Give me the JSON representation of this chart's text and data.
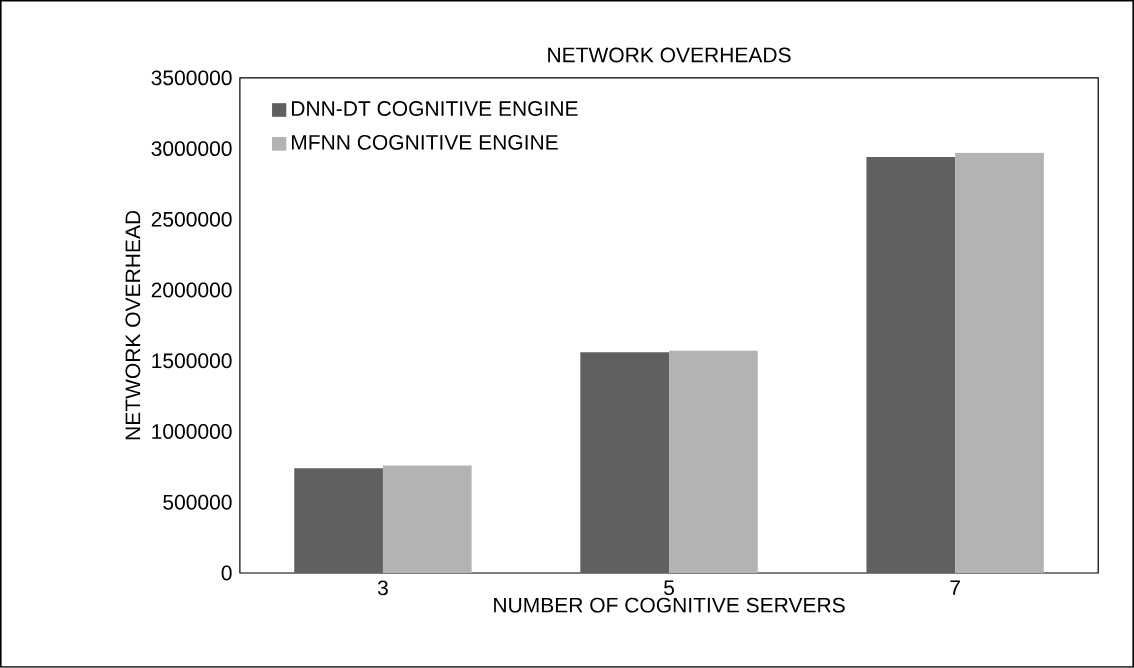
{
  "chart_data": {
    "type": "bar",
    "title": "NETWORK OVERHEADS",
    "xlabel": "NUMBER OF COGNITIVE SERVERS",
    "ylabel": "NETWORK OVERHEAD",
    "categories": [
      "3",
      "5",
      "7"
    ],
    "series": [
      {
        "name": "DNN-DT COGNITIVE ENGINE",
        "color": "#606060",
        "values": [
          740000,
          1560000,
          2940000
        ]
      },
      {
        "name": "MFNN COGNITIVE ENGINE",
        "color": "#b3b3b3",
        "values": [
          760000,
          1570000,
          2970000
        ]
      }
    ],
    "ylim": [
      0,
      3500000
    ],
    "yticks": [
      0,
      500000,
      1000000,
      1500000,
      2000000,
      2500000,
      3000000,
      3500000
    ],
    "legend": "top left",
    "grid": false
  }
}
